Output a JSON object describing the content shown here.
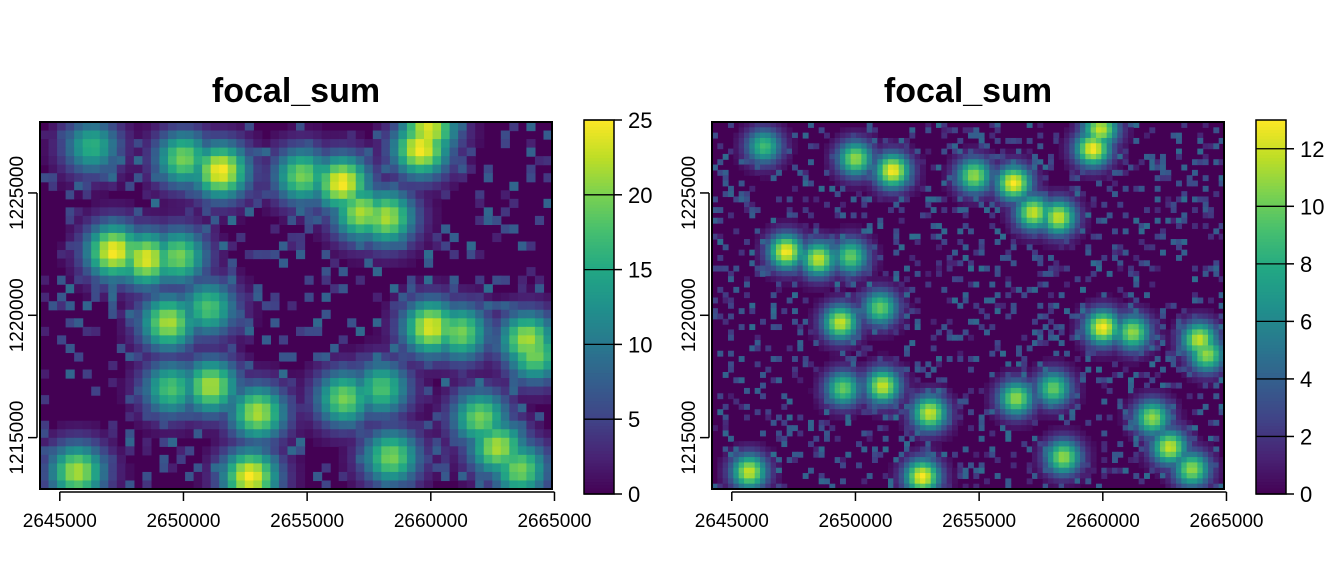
{
  "chart_data": [
    {
      "type": "heatmap",
      "title": "focal_sum",
      "xlabel": "",
      "ylabel": "",
      "xlim": [
        2644200,
        2664900
      ],
      "ylim": [
        1212900,
        1227900
      ],
      "x_ticks": [
        2645000,
        2650000,
        2655000,
        2660000,
        2665000
      ],
      "x_tick_labels": [
        "2645000",
        "2650000",
        "2655000",
        "2660000",
        "2665000"
      ],
      "y_ticks": [
        1215000,
        1220000,
        1225000
      ],
      "y_tick_labels": [
        "1215000",
        "1220000",
        "1225000"
      ],
      "colorscale": "viridis",
      "colorbar_range": [
        0,
        25
      ],
      "colorbar_ticks": [
        0,
        5,
        10,
        15,
        20,
        25
      ],
      "colorbar_tick_labels": [
        "0",
        "5",
        "10",
        "15",
        "20",
        "25"
      ],
      "grid": 60,
      "hotspots": [
        {
          "x": 2646300,
          "y": 1226900,
          "v": 16
        },
        {
          "x": 2650000,
          "y": 1226400,
          "v": 20
        },
        {
          "x": 2651500,
          "y": 1225900,
          "v": 25
        },
        {
          "x": 2654800,
          "y": 1225700,
          "v": 20
        },
        {
          "x": 2656400,
          "y": 1225400,
          "v": 25
        },
        {
          "x": 2657200,
          "y": 1224200,
          "v": 22
        },
        {
          "x": 2658200,
          "y": 1224000,
          "v": 22
        },
        {
          "x": 2659600,
          "y": 1226800,
          "v": 25
        },
        {
          "x": 2659900,
          "y": 1227600,
          "v": 24
        },
        {
          "x": 2647200,
          "y": 1222600,
          "v": 25
        },
        {
          "x": 2648500,
          "y": 1222300,
          "v": 24
        },
        {
          "x": 2649800,
          "y": 1222400,
          "v": 20
        },
        {
          "x": 2651000,
          "y": 1220300,
          "v": 18
        },
        {
          "x": 2649400,
          "y": 1219700,
          "v": 22
        },
        {
          "x": 2660000,
          "y": 1219500,
          "v": 24
        },
        {
          "x": 2661200,
          "y": 1219300,
          "v": 20
        },
        {
          "x": 2663900,
          "y": 1219000,
          "v": 22
        },
        {
          "x": 2664200,
          "y": 1218400,
          "v": 20
        },
        {
          "x": 2649500,
          "y": 1217000,
          "v": 18
        },
        {
          "x": 2651100,
          "y": 1217100,
          "v": 22
        },
        {
          "x": 2653000,
          "y": 1216000,
          "v": 22
        },
        {
          "x": 2656500,
          "y": 1216600,
          "v": 20
        },
        {
          "x": 2658000,
          "y": 1217000,
          "v": 18
        },
        {
          "x": 2662000,
          "y": 1215800,
          "v": 20
        },
        {
          "x": 2662700,
          "y": 1214600,
          "v": 22
        },
        {
          "x": 2645700,
          "y": 1213600,
          "v": 22
        },
        {
          "x": 2652700,
          "y": 1213400,
          "v": 25
        },
        {
          "x": 2658400,
          "y": 1214200,
          "v": 20
        },
        {
          "x": 2663600,
          "y": 1213700,
          "v": 20
        }
      ]
    },
    {
      "type": "heatmap",
      "title": "focal_sum",
      "xlabel": "",
      "ylabel": "",
      "xlim": [
        2644200,
        2664900
      ],
      "ylim": [
        1212900,
        1227900
      ],
      "x_ticks": [
        2645000,
        2650000,
        2655000,
        2660000,
        2665000
      ],
      "x_tick_labels": [
        "2645000",
        "2650000",
        "2655000",
        "2660000",
        "2665000"
      ],
      "y_ticks": [
        1215000,
        1220000,
        1225000
      ],
      "y_tick_labels": [
        "1215000",
        "1220000",
        "1225000"
      ],
      "colorscale": "viridis",
      "colorbar_range": [
        0,
        13
      ],
      "colorbar_ticks": [
        0,
        2,
        4,
        6,
        8,
        10,
        12
      ],
      "colorbar_tick_labels": [
        "0",
        "2",
        "4",
        "6",
        "8",
        "10",
        "12"
      ],
      "grid": 96,
      "hotspots": [
        {
          "x": 2646300,
          "y": 1226900,
          "v": 9
        },
        {
          "x": 2650000,
          "y": 1226400,
          "v": 11
        },
        {
          "x": 2651500,
          "y": 1225900,
          "v": 13
        },
        {
          "x": 2654800,
          "y": 1225700,
          "v": 11
        },
        {
          "x": 2656400,
          "y": 1225400,
          "v": 13
        },
        {
          "x": 2657200,
          "y": 1224200,
          "v": 12
        },
        {
          "x": 2658200,
          "y": 1224000,
          "v": 12
        },
        {
          "x": 2659600,
          "y": 1226800,
          "v": 13
        },
        {
          "x": 2659900,
          "y": 1227600,
          "v": 12
        },
        {
          "x": 2647200,
          "y": 1222600,
          "v": 13
        },
        {
          "x": 2648500,
          "y": 1222300,
          "v": 12
        },
        {
          "x": 2649800,
          "y": 1222400,
          "v": 10
        },
        {
          "x": 2651000,
          "y": 1220300,
          "v": 10
        },
        {
          "x": 2649400,
          "y": 1219700,
          "v": 12
        },
        {
          "x": 2660000,
          "y": 1219500,
          "v": 13
        },
        {
          "x": 2661200,
          "y": 1219300,
          "v": 11
        },
        {
          "x": 2663900,
          "y": 1219000,
          "v": 12
        },
        {
          "x": 2664200,
          "y": 1218400,
          "v": 11
        },
        {
          "x": 2649500,
          "y": 1217000,
          "v": 10
        },
        {
          "x": 2651100,
          "y": 1217100,
          "v": 12
        },
        {
          "x": 2653000,
          "y": 1216000,
          "v": 12
        },
        {
          "x": 2656500,
          "y": 1216600,
          "v": 11
        },
        {
          "x": 2658000,
          "y": 1217000,
          "v": 10
        },
        {
          "x": 2662000,
          "y": 1215800,
          "v": 11
        },
        {
          "x": 2662700,
          "y": 1214600,
          "v": 12
        },
        {
          "x": 2645700,
          "y": 1213600,
          "v": 12
        },
        {
          "x": 2652700,
          "y": 1213400,
          "v": 13
        },
        {
          "x": 2658400,
          "y": 1214200,
          "v": 11
        },
        {
          "x": 2663600,
          "y": 1213700,
          "v": 11
        }
      ]
    }
  ]
}
